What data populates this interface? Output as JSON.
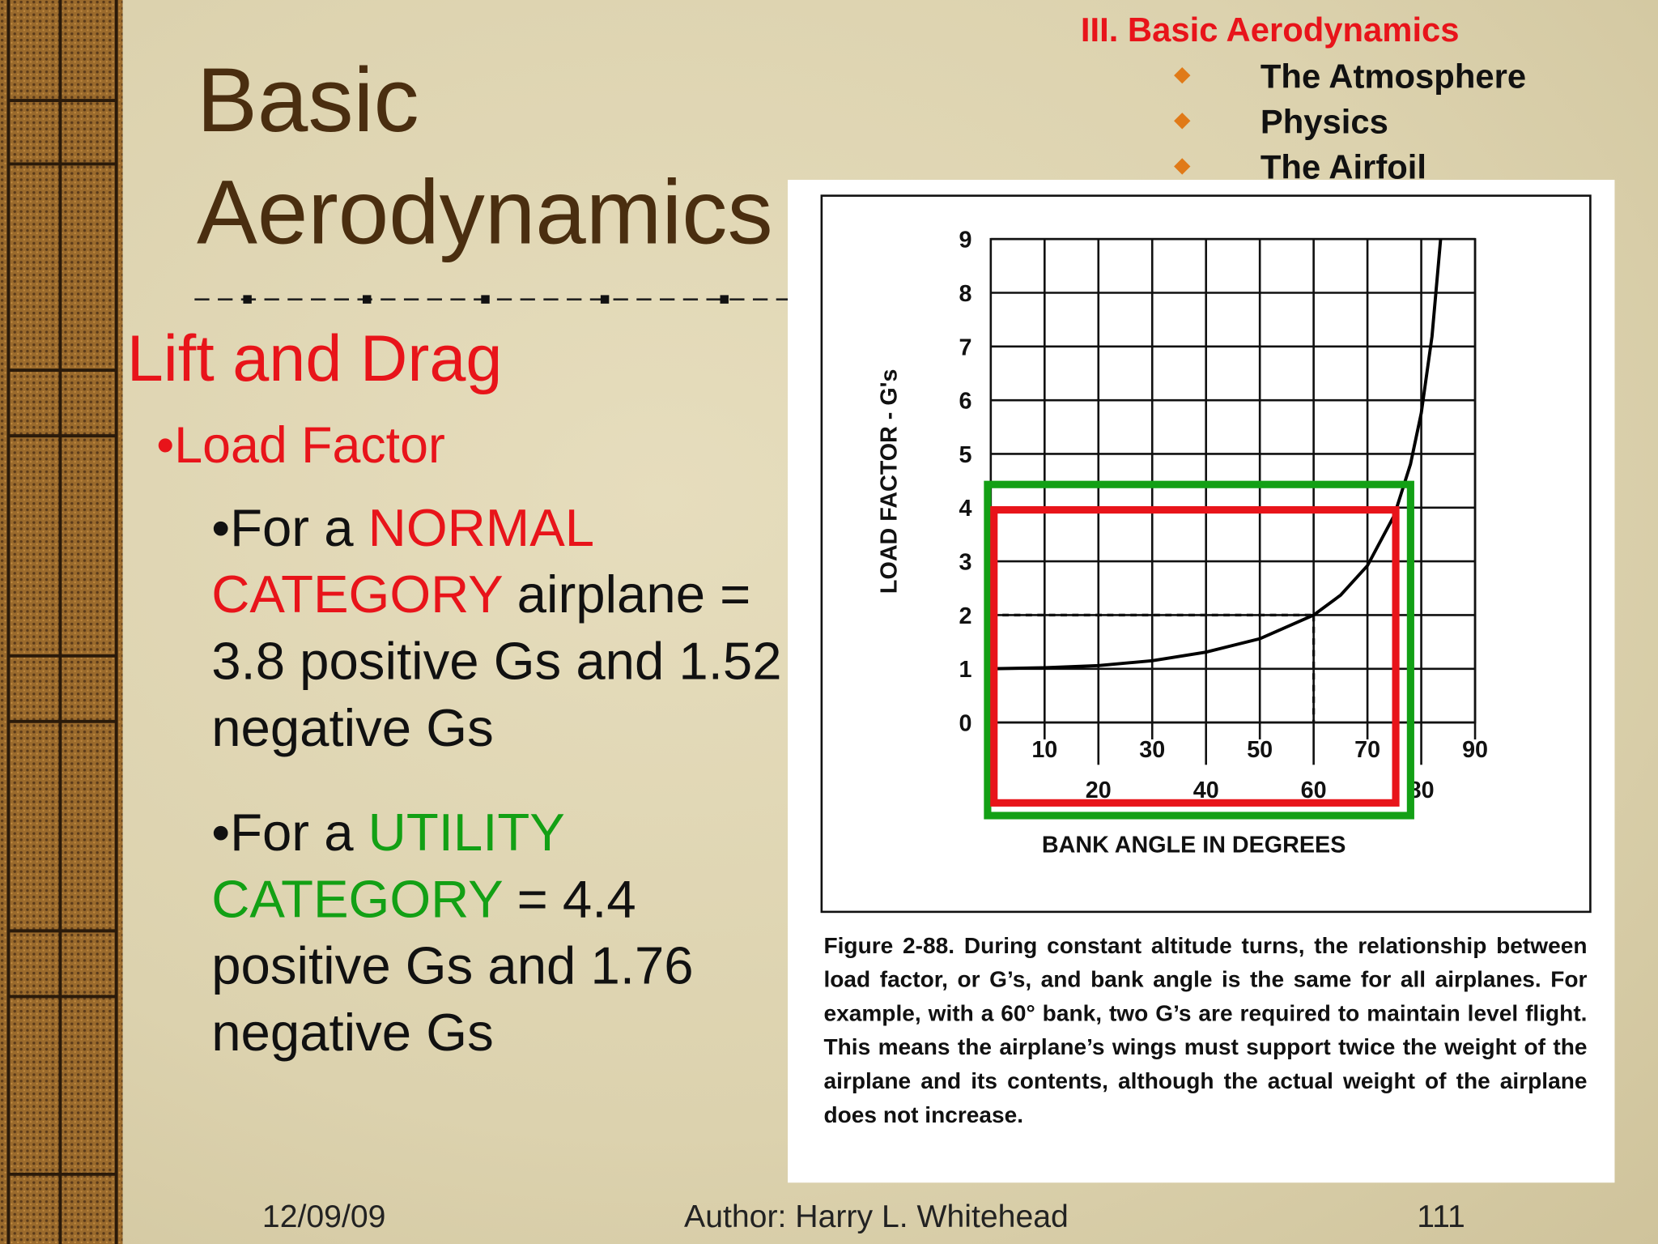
{
  "header": {
    "section": "III. Basic Aerodynamics",
    "topics": [
      "The Atmosphere",
      "Physics",
      "The Airfoil"
    ]
  },
  "title": [
    "Basic",
    "Aerodynamics"
  ],
  "subtitle": "Lift and Drag",
  "bullet": "•Load Factor",
  "items": [
    {
      "lead": "•For a ",
      "highlight": "NORMAL CATEGORY",
      "rest": " airplane = 3.8 positive Gs and 1.52 negative Gs",
      "color": "#e8141a"
    },
    {
      "lead": "•For a ",
      "highlight": "UTILITY CATEGORY",
      "rest": " = 4.4 positive Gs and 1.76 negative Gs",
      "color": "#13a015"
    }
  ],
  "chart_data": {
    "type": "line",
    "y_label": "LOAD FACTOR - G's",
    "x_label": "BANK ANGLE IN DEGREES",
    "x": [
      0,
      10,
      20,
      30,
      40,
      50,
      60,
      65,
      70,
      75,
      78,
      80,
      82,
      83.6
    ],
    "series": [
      {
        "color": "#000000",
        "values": [
          1,
          1.02,
          1.06,
          1.15,
          1.31,
          1.56,
          2,
          2.37,
          2.92,
          3.86,
          4.81,
          5.76,
          7.19,
          9
        ]
      }
    ],
    "xlim": [
      0,
      90
    ],
    "xticks": [
      10,
      20,
      30,
      40,
      50,
      60,
      70,
      80,
      90
    ],
    "ylim": [
      0,
      9
    ],
    "yticks": [
      0,
      1,
      2,
      3,
      4,
      5,
      6,
      7,
      8,
      9
    ],
    "grid": true,
    "reference": {
      "x": 60,
      "y": 2
    }
  },
  "figure_caption": "Figure 2-88. During constant altitude turns, the relationship between load factor, or G’s, and bank angle is the same for all airplanes. For example, with a 60° bank, two G’s are required to maintain level flight. This means the airplane’s wings must support twice the weight of the airplane and its contents, although the actual weight of the airplane does not increase.",
  "footer": {
    "date": "12/09/09",
    "author": "Author:  Harry L. Whitehead",
    "page": "111"
  }
}
